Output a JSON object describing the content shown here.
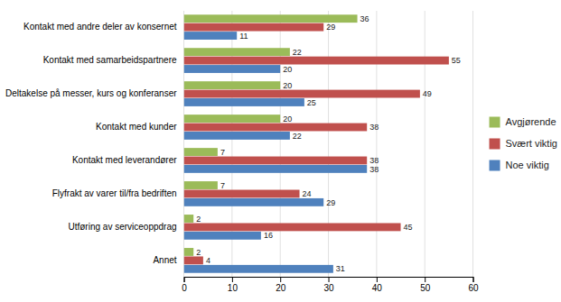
{
  "chart_data": {
    "type": "bar",
    "orientation": "horizontal",
    "categories": [
      "Kontakt med andre deler av konsernet",
      "Kontakt med samarbeidspartnere",
      "Deltakelse på messer, kurs og konferanser",
      "Kontakt med kunder",
      "Kontakt med leverandører",
      "Flyfrakt av varer til/fra bedriften",
      "Utføring av serviceoppdrag",
      "Annet"
    ],
    "series": [
      {
        "name": "Avgjørende",
        "color": "#9BBB59",
        "values": [
          36,
          22,
          20,
          20,
          7,
          7,
          2,
          2
        ]
      },
      {
        "name": "Svært viktig",
        "color": "#C0504D",
        "values": [
          29,
          55,
          49,
          38,
          38,
          24,
          45,
          4
        ]
      },
      {
        "name": "Noe viktig",
        "color": "#4F81BD",
        "values": [
          11,
          20,
          25,
          22,
          38,
          29,
          16,
          31
        ]
      }
    ],
    "xlim": [
      0,
      60
    ],
    "xticks": [
      0,
      10,
      20,
      30,
      40,
      50,
      60
    ],
    "grid": true,
    "data_labels": true,
    "legend": "right"
  }
}
